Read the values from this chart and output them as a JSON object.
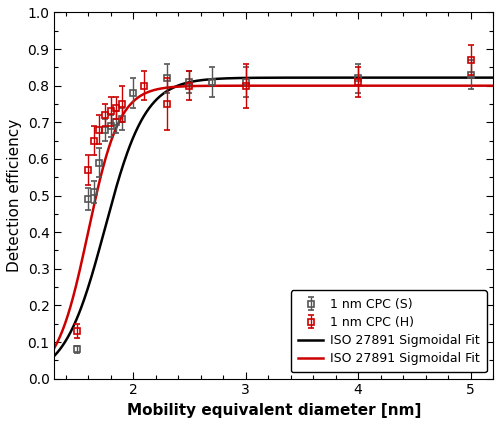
{
  "gray_x": [
    1.5,
    1.6,
    1.65,
    1.7,
    1.75,
    1.8,
    1.85,
    1.9,
    2.0,
    2.3,
    2.5,
    2.7,
    3.0,
    4.0,
    5.0
  ],
  "gray_y": [
    0.08,
    0.49,
    0.51,
    0.59,
    0.68,
    0.69,
    0.7,
    0.71,
    0.78,
    0.82,
    0.81,
    0.81,
    0.81,
    0.82,
    0.83
  ],
  "gray_yerr": [
    0.01,
    0.03,
    0.03,
    0.04,
    0.03,
    0.03,
    0.03,
    0.03,
    0.04,
    0.04,
    0.03,
    0.04,
    0.04,
    0.04,
    0.04
  ],
  "red_x": [
    1.5,
    1.6,
    1.65,
    1.7,
    1.75,
    1.8,
    1.85,
    1.9,
    2.1,
    2.3,
    2.5,
    3.0,
    4.0,
    5.0
  ],
  "red_y": [
    0.13,
    0.57,
    0.65,
    0.68,
    0.72,
    0.73,
    0.74,
    0.75,
    0.8,
    0.75,
    0.8,
    0.8,
    0.81,
    0.87
  ],
  "red_yerr": [
    0.02,
    0.04,
    0.04,
    0.04,
    0.03,
    0.04,
    0.03,
    0.05,
    0.04,
    0.07,
    0.04,
    0.06,
    0.04,
    0.04
  ],
  "black_fit_params": {
    "eta_max": 0.822,
    "d50": 1.75,
    "sigma": 0.18
  },
  "red_fit_params": {
    "eta_max": 0.8,
    "d50": 1.6,
    "sigma": 0.14
  },
  "xlim": [
    1.3,
    5.2
  ],
  "ylim": [
    0.0,
    1.0
  ],
  "xlabel": "Mobility equivalent diameter [nm]",
  "ylabel": "Detection efficiency",
  "legend_labels": [
    "1 nm CPC (S)",
    "1 nm CPC (H)",
    "ISO 27891 Sigmoidal Fit",
    "ISO 27891 Sigmoidal Fit"
  ],
  "gray_color": "#555555",
  "red_color": "#cc0000",
  "black_line_color": "#000000",
  "red_line_color": "#cc0000",
  "background_color": "#ffffff",
  "marker_size": 5,
  "line_width": 1.8,
  "xlabel_fontsize": 11,
  "ylabel_fontsize": 11,
  "tick_fontsize": 10,
  "legend_fontsize": 9
}
